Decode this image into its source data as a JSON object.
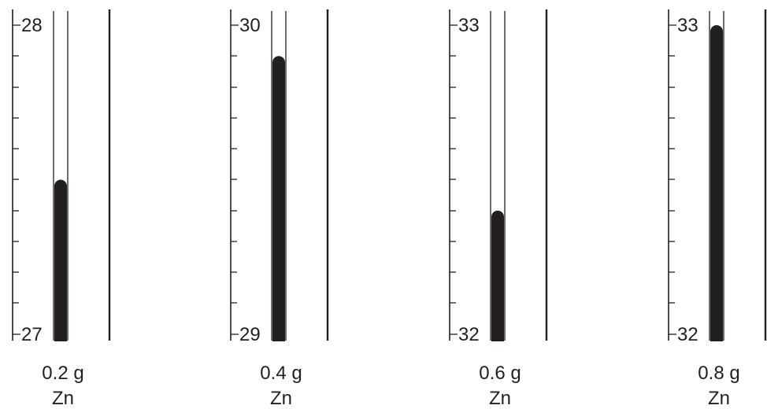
{
  "thermometers": [
    {
      "top_label": "28",
      "bottom_label": "27",
      "reading": 27.5,
      "mass_label": "0.2 g",
      "metal_label": "Zn"
    },
    {
      "top_label": "30",
      "bottom_label": "29",
      "reading": 29.9,
      "mass_label": "0.4 g",
      "metal_label": "Zn"
    },
    {
      "top_label": "33",
      "bottom_label": "32",
      "reading": 32.4,
      "mass_label": "0.6 g",
      "metal_label": "Zn"
    },
    {
      "top_label": "33",
      "bottom_label": "32",
      "reading": 33.0,
      "mass_label": "0.8 g",
      "metal_label": "Zn"
    }
  ],
  "colors": {
    "ink": "#231f20",
    "background": "#ffffff"
  }
}
